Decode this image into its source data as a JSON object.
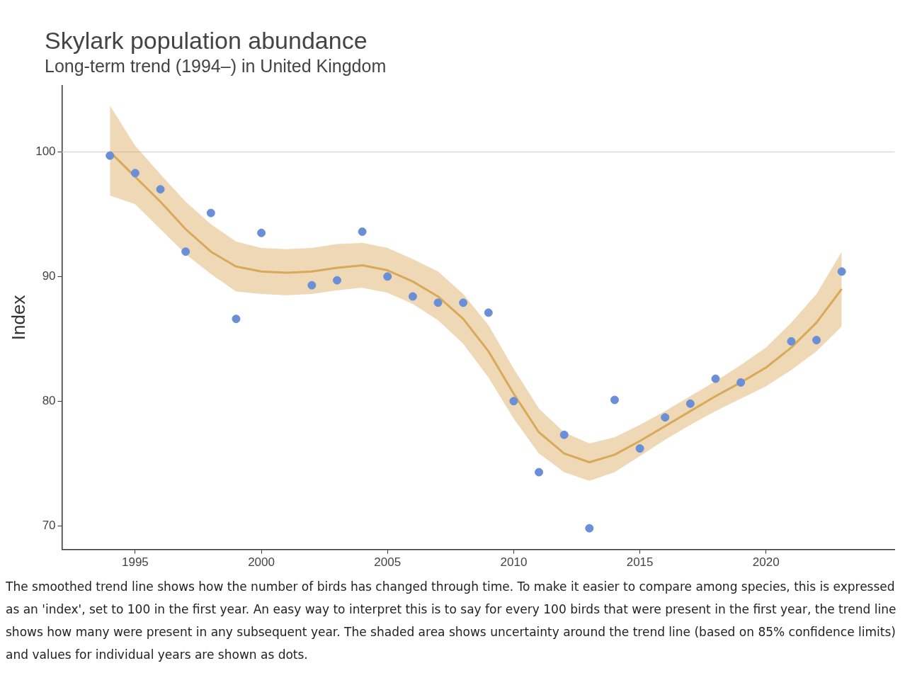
{
  "chart_data": {
    "type": "line",
    "title": "Skylark population abundance",
    "subtitle": "Long-term trend (1994–) in United Kingdom",
    "ylabel": "Index",
    "xlim": [
      1992.1,
      2025.1
    ],
    "xticks": [
      1995,
      2000,
      2005,
      2010,
      2015,
      2020
    ],
    "ylim": [
      68.1,
      105.3
    ],
    "yticks": [
      70,
      80,
      90,
      100
    ],
    "grid": false,
    "legend": false,
    "ref_lines": [
      {
        "axis": "y",
        "value": 100,
        "color": "#d9d9d9"
      }
    ],
    "series": [
      {
        "color": "#d9a95a",
        "x": [
          1994,
          1995,
          1996,
          1997,
          1998,
          1999,
          2000,
          2001,
          2002,
          2003,
          2004,
          2005,
          2006,
          2007,
          2008,
          2009,
          2010,
          2011,
          2012,
          2013,
          2014,
          2015,
          2016,
          2017,
          2018,
          2019,
          2020,
          2021,
          2022,
          2023
        ],
        "values": [
          100,
          98.0,
          96.0,
          93.8,
          92.0,
          90.8,
          90.4,
          90.3,
          90.4,
          90.7,
          90.9,
          90.5,
          89.6,
          88.4,
          86.6,
          84.0,
          80.6,
          77.5,
          75.8,
          75.1,
          75.7,
          76.8,
          78.0,
          79.2,
          80.4,
          81.5,
          82.7,
          84.3,
          86.3,
          89.0
        ],
        "lower": [
          96.5,
          95.8,
          93.8,
          91.8,
          90.2,
          88.8,
          88.6,
          88.5,
          88.6,
          88.9,
          89.1,
          88.7,
          87.8,
          86.5,
          84.6,
          81.9,
          78.6,
          75.8,
          74.3,
          73.6,
          74.3,
          75.6,
          76.9,
          78.1,
          79.2,
          80.2,
          81.2,
          82.5,
          84.0,
          86.0
        ],
        "upper": [
          103.7,
          100.5,
          98.2,
          96.0,
          94.2,
          92.8,
          92.3,
          92.2,
          92.3,
          92.6,
          92.7,
          92.3,
          91.4,
          90.4,
          88.6,
          86.1,
          82.6,
          79.4,
          77.5,
          76.6,
          77.1,
          78.1,
          79.2,
          80.4,
          81.6,
          82.9,
          84.3,
          86.3,
          88.6,
          92.0
        ]
      },
      {
        "type": "scatter",
        "color": "#6a8fd6",
        "marker": "circle",
        "x": [
          1994,
          1995,
          1996,
          1997,
          1998,
          1999,
          2000,
          2002,
          2003,
          2004,
          2005,
          2006,
          2007,
          2008,
          2009,
          2010,
          2011,
          2012,
          2013,
          2014,
          2015,
          2016,
          2017,
          2018,
          2019,
          2021,
          2022,
          2023
        ],
        "values": [
          99.7,
          98.3,
          97.0,
          92.0,
          95.1,
          86.6,
          93.5,
          89.3,
          89.7,
          93.6,
          90.0,
          88.4,
          87.9,
          87.9,
          87.1,
          80.0,
          74.3,
          77.3,
          69.8,
          80.1,
          76.2,
          78.7,
          79.8,
          81.8,
          81.5,
          84.8,
          84.9,
          90.4
        ]
      }
    ],
    "annotations": [
      "The smoothed trend line shows how the number of birds has changed through time. To make it easier to compare among species, this is expressed as an 'index', set to 100 in the first year. An easy way to interpret this is to say for every 100 birds that were present in the first year, the trend line shows how many were present in any subsequent year. The shaded area shows uncertainty around the trend line (based on 85% confidence limits) and values for individual years are shown as dots."
    ]
  }
}
